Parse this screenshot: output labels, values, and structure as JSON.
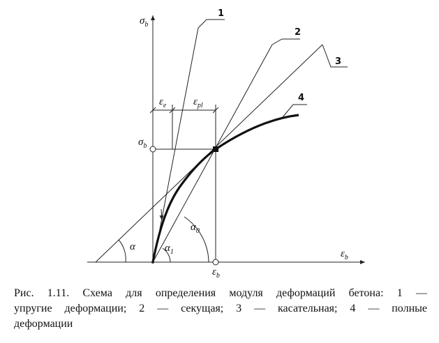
{
  "figure": {
    "axis_labels": {
      "y": {
        "base": "σ",
        "sub": "b"
      },
      "x": {
        "base": "ε",
        "sub": "b"
      }
    },
    "point_labels": {
      "y": {
        "base": "σ",
        "sub": "b"
      },
      "x": {
        "base": "ε",
        "sub": "b"
      }
    },
    "dimension_labels": [
      {
        "base": "ε",
        "sub": "e"
      },
      {
        "base": "ε",
        "sub": "pl"
      }
    ],
    "angle_labels": [
      {
        "base": "α",
        "sub": ""
      },
      {
        "base": "α",
        "sub": "1"
      },
      {
        "base": "α",
        "sub": "0"
      }
    ],
    "line_labels": [
      "1",
      "2",
      "3",
      "4"
    ]
  },
  "caption": {
    "lines": [
      "Рис. 1.11. Схема для определения модуля деформаций бетона: 1 —",
      "упругие деформации; 2 — секущая; 3 — касательная; 4 — полные",
      "деформации"
    ]
  }
}
